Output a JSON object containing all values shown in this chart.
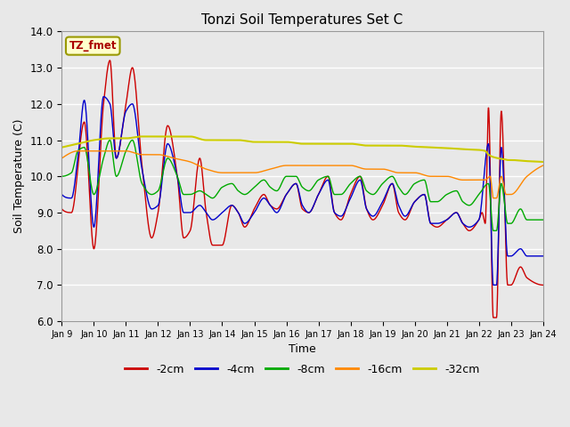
{
  "title": "Tonzi Soil Temperatures Set C",
  "xlabel": "Time",
  "ylabel": "Soil Temperature (C)",
  "ylim": [
    6.0,
    14.0
  ],
  "yticks": [
    6.0,
    7.0,
    8.0,
    9.0,
    10.0,
    11.0,
    12.0,
    13.0,
    14.0
  ],
  "plot_bg_color": "#e8e8e8",
  "grid_color": "#ffffff",
  "label_box": "TZ_fmet",
  "label_box_bg": "#ffffcc",
  "label_box_border": "#999900",
  "label_box_text": "#aa0000",
  "series": {
    "-2cm": {
      "color": "#cc0000",
      "lw": 1.0
    },
    "-4cm": {
      "color": "#0000cc",
      "lw": 1.0
    },
    "-8cm": {
      "color": "#00aa00",
      "lw": 1.0
    },
    "-16cm": {
      "color": "#ff8800",
      "lw": 1.0
    },
    "-32cm": {
      "color": "#cccc00",
      "lw": 1.5
    }
  },
  "x_tick_labels": [
    "Jan 9",
    "Jan 10",
    "Jan 11",
    "Jan 12",
    "Jan 13",
    "Jan 14",
    "Jan 15",
    "Jan 16",
    "Jan 17",
    "Jan 18",
    "Jan 19",
    "Jan 20",
    "Jan 21",
    "Jan 22",
    "Jan 23",
    "Jan 24"
  ],
  "figsize": [
    6.4,
    4.8
  ],
  "dpi": 100
}
